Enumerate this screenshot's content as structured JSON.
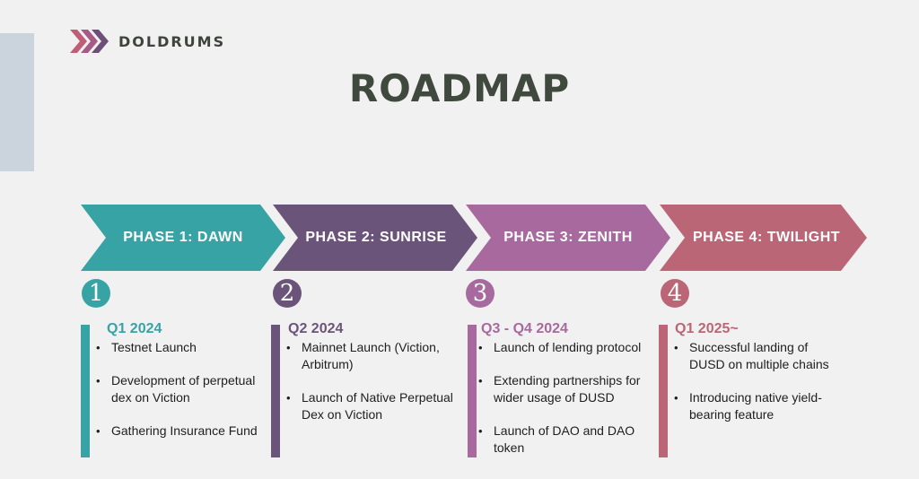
{
  "brand": {
    "name": "DOLDRUMS",
    "colors": [
      "#c15e77",
      "#a65a86",
      "#6e4f78"
    ]
  },
  "title": "ROADMAP",
  "phases": [
    {
      "label": "PHASE 1: DAWN",
      "number": "1",
      "quarter": "Q1 2024",
      "color": "#38a3a4",
      "items": [
        "Testnet Launch",
        "Development of perpetual dex on Viction",
        "Gathering Insurance Fund"
      ]
    },
    {
      "label": "PHASE 2: SUNRISE",
      "number": "2",
      "quarter": "Q2 2024",
      "color": "#6b5479",
      "items": [
        "Mainnet Launch (Viction, Arbitrum)",
        "Launch of Native Perpetual Dex on Viction"
      ]
    },
    {
      "label": "PHASE 3: ZENITH",
      "number": "3",
      "quarter": "Q3 - Q4 2024",
      "color": "#a86a9e",
      "items": [
        "Launch of lending protocol",
        "Extending partnerships for wider usage of DUSD",
        "Launch of DAO and DAO token"
      ]
    },
    {
      "label": "PHASE 4: TWILIGHT",
      "number": "4",
      "quarter": "Q1 2025~",
      "color": "#bb6676",
      "items": [
        "Successful landing of DUSD on multiple chains",
        "Introducing native yield-bearing feature"
      ]
    }
  ]
}
